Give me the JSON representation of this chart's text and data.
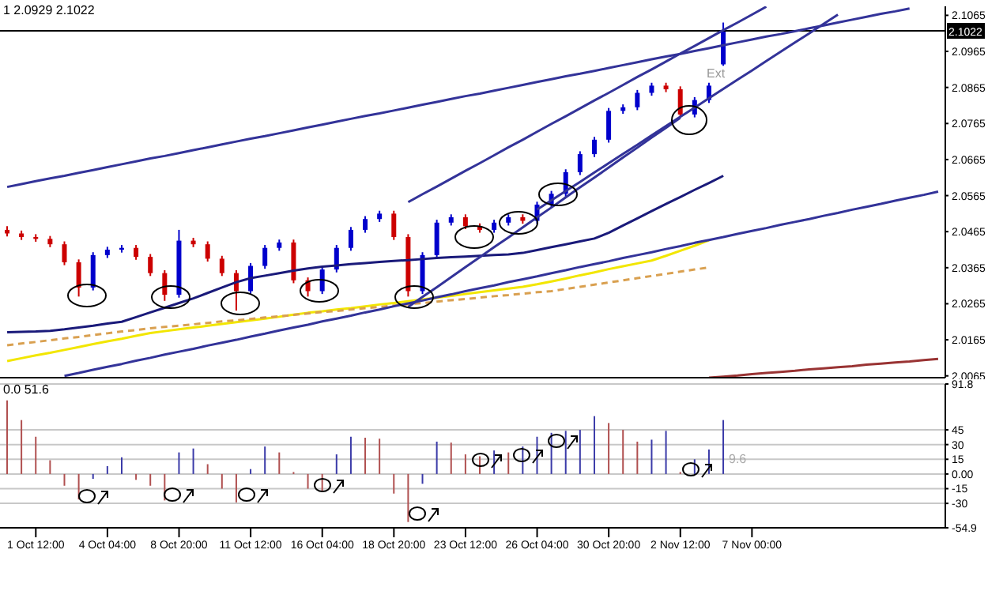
{
  "chart_data": [
    {
      "type": "candlestick",
      "annotations": [
        "1 2.0929 2.1022",
        "Ext"
      ],
      "tick_labels": "y",
      "grid": false,
      "ylim": [
        2.006,
        2.109
      ],
      "yticks": [
        2.1065,
        2.0965,
        2.0865,
        2.0765,
        2.0665,
        2.0565,
        2.0465,
        2.0365,
        2.0265,
        2.0165,
        2.0065
      ],
      "categories": [
        null,
        null,
        null,
        null,
        null,
        null,
        null,
        null,
        null,
        null,
        null,
        null,
        null,
        null,
        null,
        null,
        null,
        null,
        null,
        null,
        null,
        null,
        null,
        null,
        null,
        null,
        null,
        null,
        null,
        null,
        null,
        null,
        null,
        null,
        null,
        null,
        null,
        null,
        null,
        null,
        null,
        null,
        null,
        null,
        null,
        null,
        null,
        null,
        null,
        null,
        null,
        null,
        null,
        null,
        null,
        null,
        null,
        null,
        null,
        null,
        null,
        null,
        null,
        null,
        null,
        null
      ],
      "ohlc": [
        [
          2.047,
          2.048,
          2.0452,
          2.046
        ],
        [
          2.046,
          2.0468,
          2.0442,
          2.045
        ],
        [
          2.045,
          2.0458,
          2.0437,
          2.0445
        ],
        [
          2.0445,
          2.0453,
          2.0422,
          2.043
        ],
        [
          2.043,
          2.0438,
          2.0372,
          2.038
        ],
        [
          2.038,
          2.0388,
          2.0285,
          2.031
        ],
        [
          2.031,
          2.0408,
          2.0302,
          2.04
        ],
        [
          2.04,
          2.0423,
          2.0392,
          2.0415
        ],
        [
          2.0415,
          2.0428,
          2.0407,
          2.042
        ],
        [
          2.042,
          2.0428,
          2.0387,
          2.0395
        ],
        [
          2.0395,
          2.0403,
          2.0342,
          2.035
        ],
        [
          2.035,
          2.0358,
          2.0273,
          2.029
        ],
        [
          2.029,
          2.047,
          2.0282,
          2.044
        ],
        [
          2.044,
          2.0448,
          2.0422,
          2.043
        ],
        [
          2.043,
          2.0438,
          2.0382,
          2.039
        ],
        [
          2.039,
          2.0398,
          2.0342,
          2.035
        ],
        [
          2.035,
          2.0358,
          2.0246,
          2.03
        ],
        [
          2.03,
          2.0378,
          2.0292,
          2.037
        ],
        [
          2.037,
          2.0428,
          2.0362,
          2.042
        ],
        [
          2.042,
          2.0443,
          2.0412,
          2.0435
        ],
        [
          2.0435,
          2.0443,
          2.0322,
          2.033
        ],
        [
          2.033,
          2.0338,
          2.0285,
          2.03
        ],
        [
          2.03,
          2.0368,
          2.0292,
          2.036
        ],
        [
          2.036,
          2.0428,
          2.0352,
          2.042
        ],
        [
          2.042,
          2.0478,
          2.0412,
          2.047
        ],
        [
          2.047,
          2.0508,
          2.0462,
          2.05
        ],
        [
          2.05,
          2.0523,
          2.0492,
          2.0515
        ],
        [
          2.0515,
          2.0523,
          2.0442,
          2.045
        ],
        [
          2.045,
          2.0458,
          2.0285,
          2.03
        ],
        [
          2.03,
          2.0408,
          2.0292,
          2.04
        ],
        [
          2.04,
          2.0498,
          2.0392,
          2.049
        ],
        [
          2.049,
          2.0513,
          2.0482,
          2.0505
        ],
        [
          2.0505,
          2.0513,
          2.0472,
          2.048
        ],
        [
          2.048,
          2.0488,
          2.0462,
          2.047
        ],
        [
          2.047,
          2.0498,
          2.0462,
          2.049
        ],
        [
          2.049,
          2.0513,
          2.0482,
          2.0505
        ],
        [
          2.0505,
          2.0513,
          2.0487,
          2.0495
        ],
        [
          2.0495,
          2.0548,
          2.0487,
          2.054
        ],
        [
          2.054,
          2.0578,
          2.0532,
          2.057
        ],
        [
          2.057,
          2.0638,
          2.0562,
          2.063
        ],
        [
          2.063,
          2.0688,
          2.0622,
          2.068
        ],
        [
          2.068,
          2.0728,
          2.0672,
          2.072
        ],
        [
          2.072,
          2.0808,
          2.0712,
          2.08
        ],
        [
          2.08,
          2.0818,
          2.0792,
          2.081
        ],
        [
          2.081,
          2.0858,
          2.0802,
          2.085
        ],
        [
          2.085,
          2.0878,
          2.0842,
          2.087
        ],
        [
          2.087,
          2.0878,
          2.0852,
          2.086
        ],
        [
          2.086,
          2.0868,
          2.0782,
          2.079
        ],
        [
          2.079,
          2.0838,
          2.0782,
          2.083
        ],
        [
          2.083,
          2.0878,
          2.0822,
          2.087
        ],
        [
          2.0929,
          2.1045,
          2.0925,
          2.1022
        ],
        null,
        null,
        null,
        null,
        null,
        null,
        null,
        null,
        null,
        null,
        null,
        null,
        null,
        null,
        null
      ],
      "colors": [
        "#cc0000",
        "#cc0000",
        "#cc0000",
        "#cc0000",
        "#cc0000",
        "#cc0000",
        "#0000cc",
        "#0000cc",
        "#0000cc",
        "#cc0000",
        "#cc0000",
        "#cc0000",
        "#0000cc",
        "#cc0000",
        "#cc0000",
        "#cc0000",
        "#cc0000",
        "#0000cc",
        "#0000cc",
        "#0000cc",
        "#cc0000",
        "#cc0000",
        "#0000cc",
        "#0000cc",
        "#0000cc",
        "#0000cc",
        "#0000cc",
        "#cc0000",
        "#cc0000",
        "#0000cc",
        "#0000cc",
        "#0000cc",
        "#cc0000",
        "#cc0000",
        "#0000cc",
        "#0000cc",
        "#cc0000",
        "#0000cc",
        "#0000cc",
        "#0000cc",
        "#0000cc",
        "#0000cc",
        "#0000cc",
        "#0000cc",
        "#0000cc",
        "#0000cc",
        "#cc0000",
        "#cc0000",
        "#0000cc",
        "#0000cc",
        "#0000cc",
        null,
        null,
        null,
        null,
        null,
        null,
        null,
        null,
        null,
        null,
        null,
        null,
        null,
        null,
        null
      ],
      "series": [
        {
          "type": "line",
          "color": "#1a1a7a",
          "values": [
            2.0186,
            2.0187,
            2.0188,
            2.019,
            2.0194,
            2.0199,
            2.0204,
            2.021,
            2.0215,
            2.0228,
            2.0241,
            2.0254,
            2.0267,
            2.028,
            2.0295,
            2.031,
            2.0325,
            2.0336,
            2.0343,
            2.035,
            2.0357,
            2.0363,
            2.0368,
            2.0371,
            2.0375,
            2.0378,
            2.0381,
            2.0384,
            2.0386,
            2.0389,
            2.0392,
            2.0394,
            2.0396,
            2.0398,
            2.04,
            2.0402,
            2.0406,
            2.0414,
            2.0422,
            2.043,
            2.0438,
            2.0446,
            2.0462,
            2.0482,
            2.0502,
            2.0522,
            2.0542,
            2.0561,
            2.0581,
            2.06,
            2.062,
            null,
            null,
            null,
            null,
            null,
            null,
            null,
            null,
            null,
            null,
            null,
            null,
            null,
            null,
            null
          ]
        },
        {
          "type": "line",
          "color": "#f2e600",
          "values": [
            2.0106,
            2.0114,
            2.0122,
            2.0129,
            2.0137,
            2.0145,
            2.0153,
            2.0161,
            2.0168,
            2.0176,
            2.0184,
            2.0189,
            2.0194,
            2.0199,
            2.0204,
            2.0209,
            2.0214,
            2.0219,
            2.0224,
            2.0229,
            2.0235,
            2.024,
            2.0244,
            2.0249,
            2.0253,
            2.0258,
            2.0263,
            2.0267,
            2.0272,
            2.0277,
            2.0282,
            2.0287,
            2.0292,
            2.0297,
            2.0302,
            2.0307,
            2.0312,
            2.0319,
            2.0327,
            2.0335,
            2.0344,
            2.0352,
            2.0361,
            2.0369,
            2.0377,
            2.0385,
            2.0398,
            2.0412,
            2.0426,
            2.0441,
            null,
            null,
            null,
            null,
            null,
            null,
            null,
            null,
            null,
            null,
            null,
            null,
            null,
            null,
            null,
            null
          ]
        },
        {
          "type": "line",
          "color": "#d9a050",
          "line_style": "dashed",
          "values": [
            2.015,
            2.0155,
            2.0159,
            2.0164,
            2.0169,
            2.0173,
            2.0178,
            2.0183,
            2.0188,
            2.0192,
            2.0197,
            2.0201,
            2.0204,
            2.0208,
            2.0212,
            2.0216,
            2.0219,
            2.0223,
            2.0227,
            2.023,
            2.0234,
            2.0238,
            2.0242,
            2.0245,
            2.0249,
            2.0253,
            2.0256,
            2.026,
            2.0264,
            2.0267,
            2.0271,
            2.0275,
            2.0278,
            2.0282,
            2.0286,
            2.0289,
            2.0293,
            2.0297,
            2.03,
            2.0306,
            2.0312,
            2.0318,
            2.0324,
            2.033,
            2.0336,
            2.0342,
            2.0348,
            2.0354,
            2.036,
            2.0366,
            null,
            null,
            null,
            null,
            null,
            null,
            null,
            null,
            null,
            null,
            null,
            null,
            null,
            null,
            null,
            null
          ]
        },
        {
          "type": "line",
          "color": "#333399",
          "values": [
            2.0589,
            2.0597,
            2.0605,
            2.0613,
            2.062,
            2.0628,
            2.0636,
            2.0644,
            2.0652,
            2.066,
            2.0668,
            2.0675,
            2.0683,
            2.0691,
            2.0699,
            2.0707,
            2.0715,
            2.0723,
            2.073,
            2.0738,
            2.0746,
            2.0754,
            2.0762,
            2.077,
            2.0778,
            2.0786,
            2.0793,
            2.0801,
            2.0809,
            2.0817,
            2.0825,
            2.0833,
            2.0841,
            2.0848,
            2.0856,
            2.0864,
            2.0872,
            2.088,
            2.0888,
            2.0896,
            2.0903,
            2.0911,
            2.0919,
            2.0927,
            2.0935,
            2.0943,
            2.0951,
            2.0958,
            2.0966,
            2.0974,
            2.0982,
            2.099,
            2.0998,
            2.1006,
            2.1013,
            2.1021,
            2.1029,
            2.1037,
            2.1045,
            2.1053,
            2.1061,
            2.1069,
            2.1076,
            2.1084,
            null,
            null
          ]
        },
        {
          "type": "line",
          "color": "#333399",
          "values": [
            null,
            null,
            null,
            null,
            2.0065,
            2.0073,
            2.0082,
            2.009,
            2.0098,
            2.0107,
            2.0115,
            2.0124,
            2.0132,
            2.014,
            2.0149,
            2.0157,
            2.0165,
            2.0174,
            2.0182,
            2.0191,
            2.0199,
            2.0207,
            2.0216,
            2.0224,
            2.0232,
            2.0241,
            2.0249,
            2.0258,
            2.0266,
            2.0274,
            2.0283,
            2.0291,
            2.03,
            2.0308,
            2.0316,
            2.0325,
            2.0333,
            2.0341,
            2.035,
            2.0358,
            2.0367,
            2.0375,
            2.0383,
            2.0392,
            2.04,
            2.0408,
            2.0417,
            2.0425,
            2.0434,
            2.0442,
            2.045,
            2.0459,
            2.0467,
            2.0475,
            2.0484,
            2.0492,
            2.05,
            2.0509,
            2.0517,
            2.0526,
            2.0534,
            2.0542,
            2.0551,
            2.0559,
            2.0567,
            2.0576
          ]
        },
        {
          "type": "line",
          "color": "#333399",
          "values": [
            null,
            null,
            null,
            null,
            null,
            null,
            null,
            null,
            null,
            null,
            null,
            null,
            null,
            null,
            null,
            null,
            null,
            null,
            null,
            null,
            null,
            null,
            null,
            null,
            null,
            null,
            null,
            null,
            2.0547,
            2.0569,
            2.059,
            2.0612,
            2.0634,
            2.0655,
            2.0677,
            2.0699,
            2.072,
            2.0742,
            2.0764,
            2.0785,
            2.0807,
            2.0829,
            2.085,
            2.0872,
            2.0894,
            2.0915,
            2.0937,
            2.0959,
            2.098,
            2.1002,
            2.1024,
            2.1045,
            2.1067,
            2.1089,
            null,
            null,
            null,
            null,
            null,
            null,
            null,
            null,
            null,
            null,
            null,
            null
          ]
        },
        {
          "type": "line",
          "color": "#333399",
          "values": [
            null,
            null,
            null,
            null,
            null,
            null,
            null,
            null,
            null,
            null,
            null,
            null,
            null,
            null,
            null,
            null,
            null,
            null,
            null,
            null,
            null,
            null,
            null,
            null,
            null,
            null,
            null,
            null,
            null,
            null,
            null,
            null,
            null,
            null,
            null,
            null,
            null,
            2.0526,
            2.0552,
            2.0578,
            2.0603,
            2.0629,
            2.0655,
            2.0681,
            2.0706,
            2.0732,
            2.0758,
            2.0784,
            2.0809,
            2.0835,
            2.0861,
            2.0887,
            2.0912,
            2.0938,
            2.0964,
            2.099,
            2.1015,
            2.1041,
            2.1067,
            null,
            null,
            null,
            null,
            null,
            null,
            null
          ]
        },
        {
          "type": "line",
          "color": "#333399",
          "values": [
            null,
            null,
            null,
            null,
            null,
            null,
            null,
            null,
            null,
            null,
            null,
            null,
            null,
            null,
            null,
            null,
            null,
            null,
            null,
            null,
            null,
            null,
            null,
            null,
            null,
            null,
            null,
            null,
            2.0256,
            2.0284,
            2.0311,
            2.0339,
            2.0367,
            2.0394,
            2.0422,
            2.0449,
            2.0477,
            2.0505,
            2.0532,
            2.056,
            2.0588,
            2.0615,
            2.0643,
            2.0671,
            2.0698,
            2.0726,
            2.0753,
            2.0781,
            null,
            null,
            null,
            null,
            null,
            null,
            null,
            null,
            null,
            null,
            null,
            null,
            null,
            null,
            null,
            null,
            null,
            null
          ]
        },
        {
          "type": "line",
          "color": "#993333",
          "values": [
            null,
            null,
            null,
            null,
            null,
            null,
            null,
            null,
            null,
            null,
            null,
            null,
            null,
            null,
            null,
            null,
            null,
            null,
            null,
            null,
            null,
            null,
            null,
            null,
            null,
            null,
            null,
            null,
            null,
            null,
            null,
            null,
            null,
            null,
            null,
            null,
            null,
            null,
            null,
            null,
            null,
            null,
            null,
            null,
            null,
            null,
            null,
            null,
            null,
            2.006,
            2.0063,
            2.0066,
            2.007,
            2.0073,
            2.0076,
            2.0079,
            2.0083,
            2.0086,
            2.0089,
            2.0092,
            2.0096,
            2.0099,
            2.0102,
            2.0105,
            2.0109,
            2.0112
          ]
        }
      ],
      "ref_lines": [
        {
          "axis": "y",
          "value": 2.1022,
          "label": "2.1022",
          "color": "#000000",
          "line_style": "solid"
        }
      ]
    },
    {
      "type": "bar",
      "annotations": [
        "0.0 51.6",
        "9.6"
      ],
      "grid": "y",
      "ylim": [
        -54.9,
        91.8
      ],
      "yticks": [
        91.8,
        {
          "value": 45,
          "label": "45"
        },
        {
          "value": 30,
          "label": "30"
        },
        {
          "value": 15,
          "label": "15"
        },
        {
          "value": 0,
          "label": "0.00"
        },
        {
          "value": -15,
          "label": "-15"
        },
        {
          "value": -30,
          "label": "-30"
        },
        -54.9
      ],
      "categories": [
        null,
        null,
        "1 Oct 12:00",
        null,
        null,
        null,
        null,
        "4 Oct 04:00",
        null,
        null,
        null,
        null,
        "8 Oct 20:00",
        null,
        null,
        null,
        null,
        "11 Oct 12:00",
        null,
        null,
        null,
        null,
        "16 Oct 04:00",
        null,
        null,
        null,
        null,
        "18 Oct 20:00",
        null,
        null,
        null,
        null,
        "23 Oct 12:00",
        null,
        null,
        null,
        null,
        "26 Oct 04:00",
        null,
        null,
        null,
        null,
        "30 Oct 20:00",
        null,
        null,
        null,
        null,
        "2 Nov 12:00",
        null,
        null,
        null,
        null,
        "7 Nov 00:00",
        null,
        null,
        null,
        null,
        null,
        null,
        null,
        null,
        null,
        null,
        null,
        null,
        null
      ],
      "values": [
        75,
        55,
        38,
        14,
        -12,
        -26,
        -5,
        8,
        17,
        -6,
        -12,
        -27,
        22,
        26,
        10,
        -15,
        -29,
        5,
        28,
        22,
        2,
        -15,
        -18,
        20,
        38,
        37,
        36,
        -20,
        -49,
        -10,
        33,
        32,
        20,
        18,
        24,
        22,
        28,
        38,
        42,
        44,
        45,
        59,
        52,
        45,
        33,
        35,
        44,
        2,
        15,
        25,
        55,
        null,
        null,
        null,
        null,
        null,
        null,
        null,
        null,
        null,
        null,
        null,
        null,
        null,
        null,
        null
      ],
      "colors": [
        "#b05050",
        "#b05050",
        "#b05050",
        "#b05050",
        "#b05050",
        "#b05050",
        "#3a3aa8",
        "#3a3aa8",
        "#3a3aa8",
        "#b05050",
        "#b05050",
        "#b05050",
        "#3a3aa8",
        "#3a3aa8",
        "#b05050",
        "#b05050",
        "#b05050",
        "#3a3aa8",
        "#3a3aa8",
        "#b05050",
        "#b05050",
        "#b05050",
        "#b05050",
        "#3a3aa8",
        "#3a3aa8",
        "#b05050",
        "#b05050",
        "#b05050",
        "#b05050",
        "#3a3aa8",
        "#3a3aa8",
        "#b05050",
        "#b05050",
        "#b05050",
        "#3a3aa8",
        "#b05050",
        "#3a3aa8",
        "#3a3aa8",
        "#3a3aa8",
        "#3a3aa8",
        "#3a3aa8",
        "#3a3aa8",
        "#b05050",
        "#b05050",
        "#b05050",
        "#3a3aa8",
        "#3a3aa8",
        "#b05050",
        "#3a3aa8",
        "#3a3aa8",
        "#3a3aa8",
        null,
        null,
        null,
        null,
        null,
        null,
        null,
        null,
        null,
        null,
        null,
        null,
        null,
        null,
        null
      ]
    }
  ]
}
